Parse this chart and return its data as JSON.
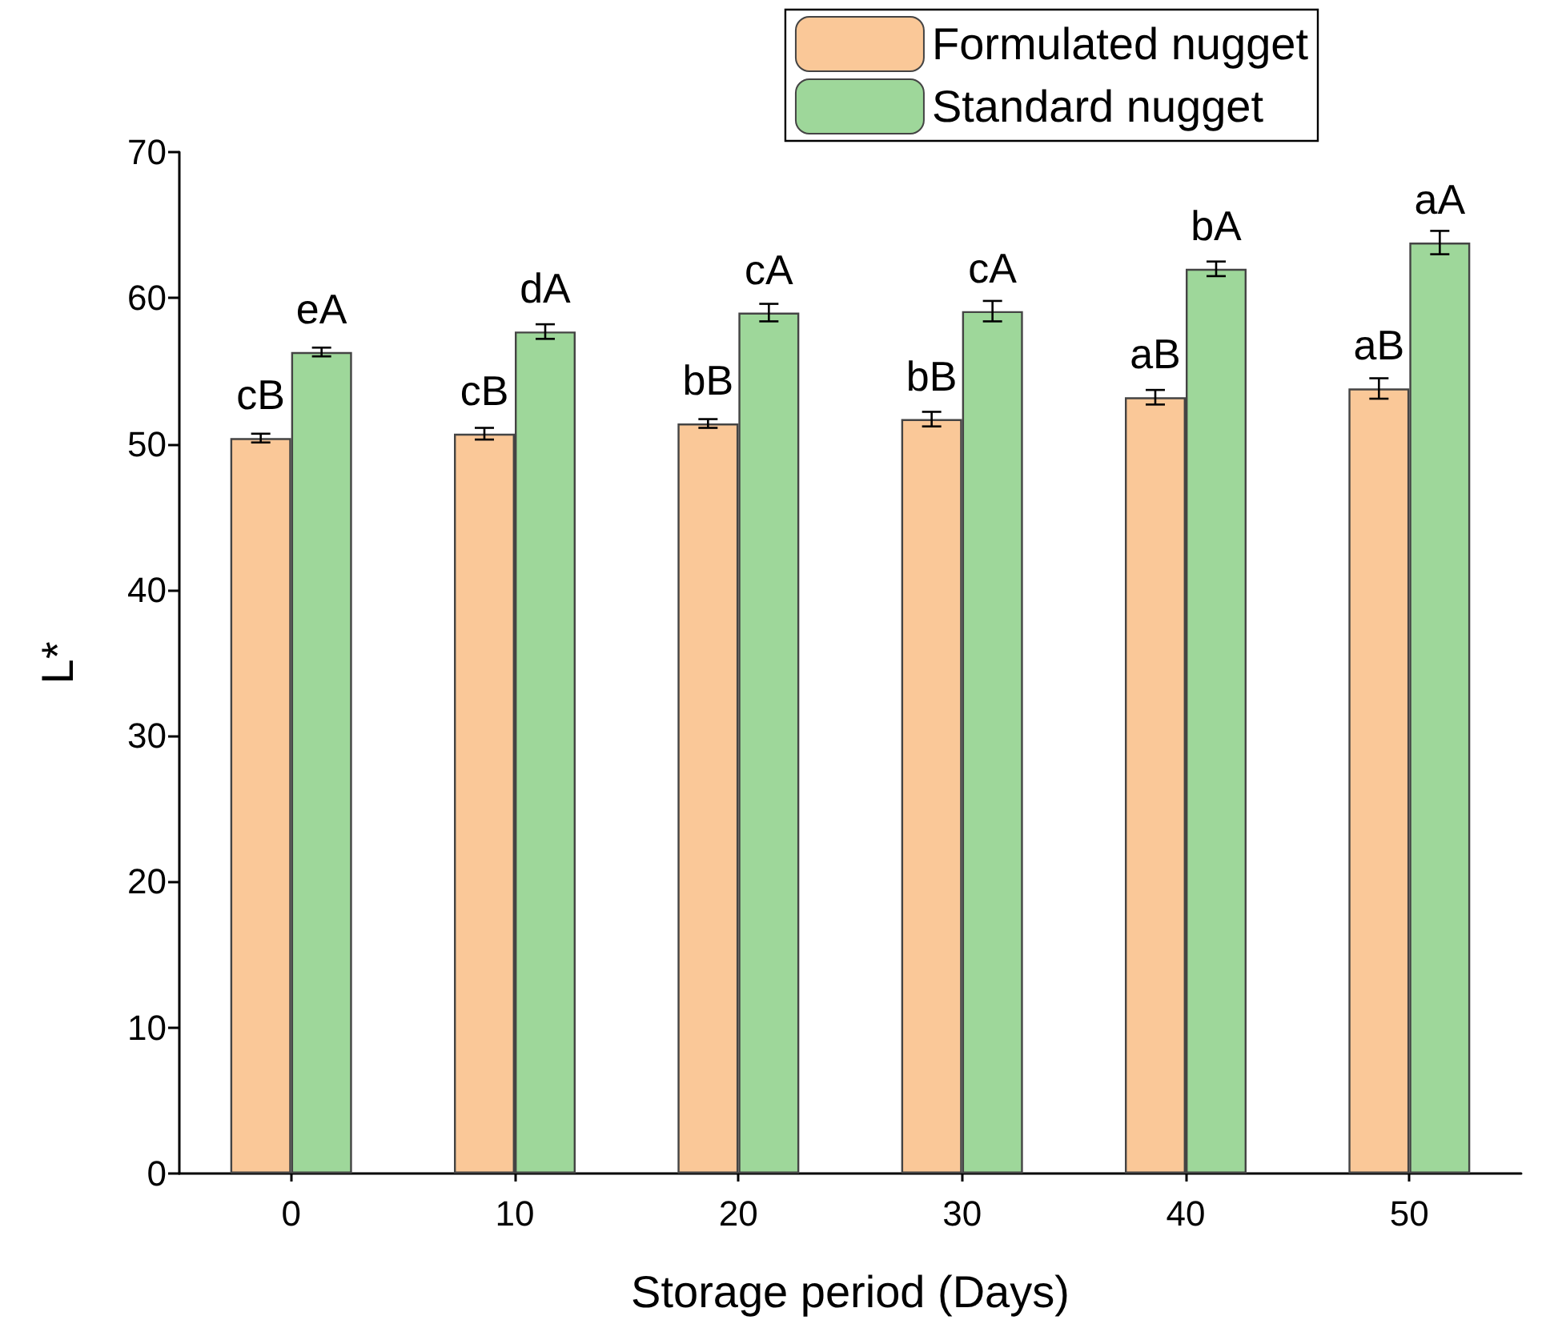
{
  "chart_data": {
    "type": "bar",
    "xlabel": "Storage period (Days)",
    "ylabel": "L*",
    "categories": [
      "0",
      "10",
      "20",
      "30",
      "40",
      "50"
    ],
    "series": [
      {
        "name": "Formulated nugget",
        "color": "#fac898",
        "values": [
          50.4,
          50.7,
          51.4,
          51.7,
          53.2,
          53.8
        ],
        "errors": [
          0.3,
          0.4,
          0.3,
          0.5,
          0.5,
          0.7
        ],
        "value_labels": [
          "cB",
          "cB",
          "bB",
          "bB",
          "aB",
          "aB"
        ]
      },
      {
        "name": "Standard nugget",
        "color": "#9ed79a",
        "values": [
          56.3,
          57.7,
          59.0,
          59.1,
          62.0,
          63.8
        ],
        "errors": [
          0.3,
          0.5,
          0.6,
          0.7,
          0.5,
          0.8
        ],
        "value_labels": [
          "eA",
          "dA",
          "cA",
          "cA",
          "bA",
          "aA"
        ]
      }
    ],
    "ylim": [
      0,
      70
    ],
    "yticks": [
      0,
      10,
      20,
      30,
      40,
      50,
      60,
      70
    ],
    "legend": "top right",
    "grid": false
  }
}
